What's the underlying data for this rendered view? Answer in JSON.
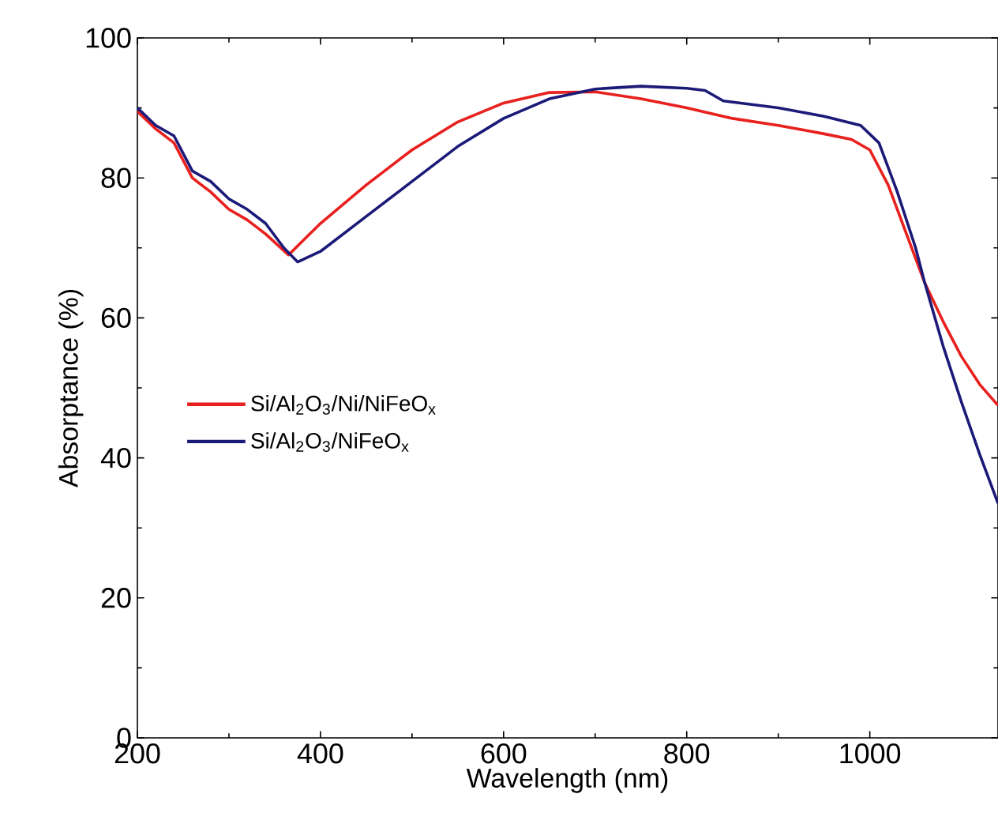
{
  "chart_data": {
    "type": "line",
    "xlabel": "Wavelength (nm)",
    "ylabel": "Absorptance (%)",
    "xlim": [
      200,
      1140
    ],
    "ylim": [
      0,
      100
    ],
    "xticks": [
      200,
      400,
      600,
      800,
      1000
    ],
    "yticks": [
      0,
      20,
      40,
      60,
      80,
      100
    ],
    "legend": "left",
    "grid": false,
    "line_style": "solid",
    "marker": "none",
    "series": [
      {
        "name": "Si/Al$_{2}$O$_{3}$/Ni/NiFeO$_{x}$",
        "color": "#e8201e",
        "x": [
          200,
          220,
          240,
          260,
          280,
          300,
          320,
          340,
          365,
          400,
          450,
          500,
          550,
          600,
          650,
          700,
          750,
          800,
          850,
          900,
          950,
          980,
          1000,
          1020,
          1040,
          1060,
          1080,
          1100,
          1120,
          1140
        ],
        "values": [
          89.5,
          87,
          85,
          80,
          78,
          75.5,
          74,
          72,
          69,
          73.5,
          79,
          84,
          88,
          90.7,
          92.2,
          92.3,
          91.3,
          90,
          88.5,
          87.5,
          86.3,
          85.5,
          84,
          79,
          72,
          65,
          59.5,
          54.5,
          50.5,
          47.5
        ]
      },
      {
        "name": "Si/Al$_{2}$O$_{3}$/NiFeO$_{x}$",
        "color": "#1c1a78",
        "x": [
          200,
          220,
          240,
          260,
          280,
          300,
          320,
          340,
          360,
          375,
          400,
          450,
          500,
          550,
          600,
          650,
          700,
          750,
          800,
          820,
          840,
          900,
          950,
          990,
          1010,
          1030,
          1050,
          1060,
          1080,
          1100,
          1120,
          1140
        ],
        "values": [
          90,
          87.5,
          86,
          81,
          79.5,
          77,
          75.5,
          73.5,
          70,
          68,
          69.5,
          74.5,
          79.5,
          84.5,
          88.5,
          91.3,
          92.7,
          93.1,
          92.8,
          92.5,
          91,
          90,
          88.8,
          87.5,
          85,
          78,
          70,
          65,
          56,
          48,
          40.5,
          33.5
        ]
      }
    ]
  }
}
